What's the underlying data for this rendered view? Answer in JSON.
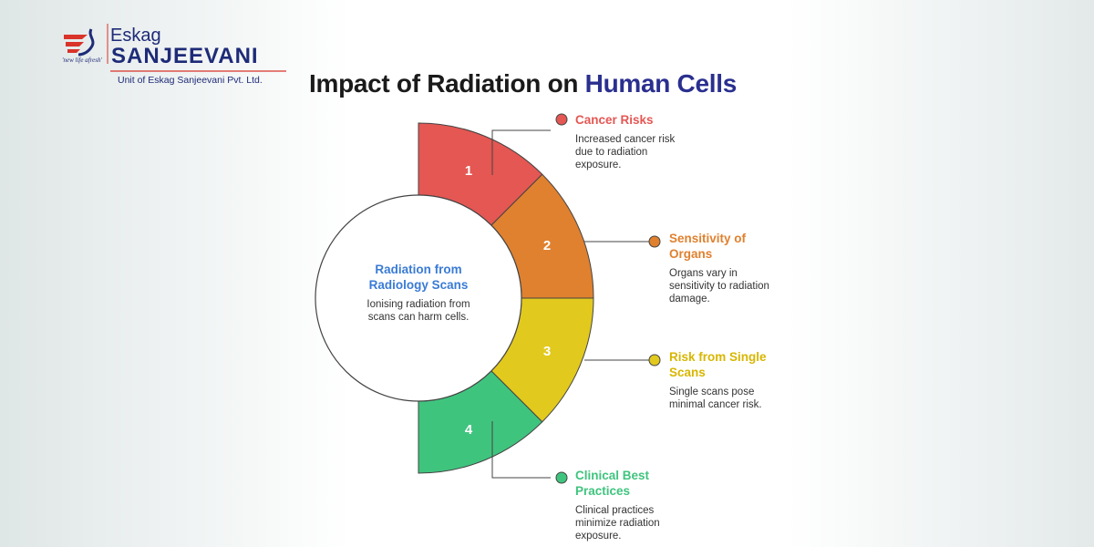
{
  "logo": {
    "brand_top": "Eskag",
    "brand_main": "SANJEEVANI",
    "tagline": "'new life afresh'",
    "subtitle": "Unit of Eskag Sanjeevani Pvt. Ltd.",
    "colors": {
      "navy": "#1e2b78",
      "red": "#d9332a"
    }
  },
  "title": {
    "part1": "Impact of Radiation on ",
    "part2": "Human Cells"
  },
  "center": {
    "title": "Radiation from Radiology Scans",
    "description": "Ionising radiation from scans can harm cells."
  },
  "segments": [
    {
      "number": "1",
      "label": "Cancer Risks",
      "description": "Increased cancer risk due to radiation exposure.",
      "color": "#e45753"
    },
    {
      "number": "2",
      "label": "Sensitivity of Organs",
      "description": "Organs vary in sensitivity to radiation damage.",
      "color": "#e0812f"
    },
    {
      "number": "3",
      "label": "Risk from Single Scans",
      "description": "Single scans pose minimal cancer risk.",
      "color": "#e2c91d"
    },
    {
      "number": "4",
      "label": "Clinical Best Practices",
      "description": "Clinical practices minimize radiation exposure.",
      "color": "#3fc47e"
    }
  ]
}
